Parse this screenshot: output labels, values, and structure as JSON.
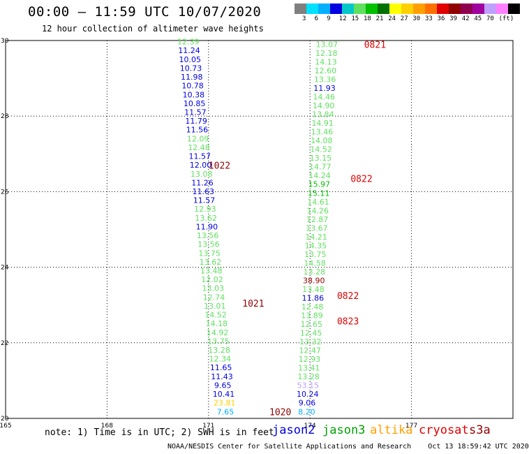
{
  "header": {
    "title": "00:00 – 11:59 UTC 10/07/2020",
    "subtitle": "12 hour collection of altimeter wave heights"
  },
  "legend": {
    "colors": [
      "#808080",
      "#00e0ff",
      "#00b0ff",
      "#0000e0",
      "#00c8c8",
      "#60e060",
      "#00c000",
      "#007000",
      "#ffff00",
      "#ffd000",
      "#ffa000",
      "#ff7000",
      "#e00000",
      "#900000",
      "#900050",
      "#a000a0",
      "#c0a0ff",
      "#ff80ff",
      "#000000"
    ],
    "labels": [
      "3",
      "6",
      "9",
      "12",
      "15",
      "18",
      "21",
      "24",
      "27",
      "30",
      "33",
      "36",
      "39",
      "42",
      "45",
      "70",
      "(ft)"
    ]
  },
  "axes": {
    "x_ticks": [
      "165",
      "168",
      "171",
      "174",
      "177"
    ],
    "y_ticks": [
      "30",
      "28",
      "26",
      "24",
      "22",
      "20"
    ]
  },
  "tracks": [
    {
      "id": "jason2-pass",
      "x0": 170.4,
      "y0": 29.97,
      "x1": 171.5,
      "y1": 20.18,
      "values": [
        "12.39",
        "11.24",
        "10.05",
        "10.73",
        "11.98",
        "10.78",
        "10.38",
        "10.85",
        "11.57",
        "11.79",
        "11.56",
        "12.09",
        "12.48",
        "11.57",
        "12.00",
        "13.08",
        "11.26",
        "11.63",
        "11.57",
        "12.93",
        "13.62",
        "11.90",
        "13.56",
        "13.56",
        "13.75",
        "13.62",
        "13.48",
        "12.02",
        "13.03",
        "12.74",
        "13.01",
        "14.52",
        "14.18",
        "14.92",
        "13.75",
        "13.28",
        "12.34",
        "11.65",
        "11.43",
        "9.65",
        "10.41",
        "23.81",
        "7.65"
      ],
      "colors": [
        "#60e060",
        "#0000e0",
        "#0000e0",
        "#0000e0",
        "#0000e0",
        "#0000e0",
        "#0000e0",
        "#0000e0",
        "#0000e0",
        "#0000e0",
        "#0000e0",
        "#60e060",
        "#60e060",
        "#0000e0",
        "#0000e0",
        "#60e060",
        "#0000e0",
        "#0000e0",
        "#0000e0",
        "#60e060",
        "#60e060",
        "#0000e0",
        "#60e060",
        "#60e060",
        "#60e060",
        "#60e060",
        "#60e060",
        "#60e060",
        "#60e060",
        "#60e060",
        "#60e060",
        "#60e060",
        "#60e060",
        "#60e060",
        "#60e060",
        "#60e060",
        "#60e060",
        "#0000e0",
        "#0000e0",
        "#0000e0",
        "#0000e0",
        "#ffd000",
        "#00b0ff"
      ]
    },
    {
      "id": "jason3-pass",
      "x0": 174.5,
      "y0": 29.9,
      "x1": 173.9,
      "y1": 20.18,
      "values": [
        "13.07",
        "12.18",
        "14.13",
        "12.60",
        "13.36",
        "11.93",
        "14.46",
        "14.90",
        "13.84",
        "14.91",
        "13.46",
        "14.08",
        "14.52",
        "13.15",
        "14.77",
        "14.24",
        "15.97",
        "15.11",
        "14.61",
        "14.26",
        "12.87",
        "13.67",
        "14.21",
        "14.35",
        "13.75",
        "14.58",
        "13.28",
        "38.90",
        "13.48",
        "11.86",
        "12.48",
        "13.89",
        "12.65",
        "12.45",
        "13.32",
        "12.47",
        "12.93",
        "13.41",
        "13.28",
        "53.15",
        "10.24",
        "9.06",
        "8.20"
      ],
      "colors": [
        "#60e060",
        "#60e060",
        "#60e060",
        "#60e060",
        "#60e060",
        "#0000e0",
        "#60e060",
        "#60e060",
        "#60e060",
        "#60e060",
        "#60e060",
        "#60e060",
        "#60e060",
        "#60e060",
        "#60e060",
        "#60e060",
        "#00c000",
        "#00c000",
        "#60e060",
        "#60e060",
        "#60e060",
        "#60e060",
        "#60e060",
        "#60e060",
        "#60e060",
        "#60e060",
        "#60e060",
        "#900000",
        "#60e060",
        "#0000e0",
        "#60e060",
        "#60e060",
        "#60e060",
        "#60e060",
        "#60e060",
        "#60e060",
        "#60e060",
        "#60e060",
        "#60e060",
        "#c0a0ff",
        "#0000e0",
        "#0000e0",
        "#00b0ff"
      ]
    }
  ],
  "time_labels": [
    {
      "text": "0821",
      "x": 175.6,
      "y": 29.9,
      "color": "#e00000"
    },
    {
      "text": "1022",
      "x": 171.0,
      "y": 26.7,
      "color": "#900000"
    },
    {
      "text": "0822",
      "x": 175.2,
      "y": 26.35,
      "color": "#e00000"
    },
    {
      "text": "0822",
      "x": 174.8,
      "y": 23.25,
      "color": "#e00000"
    },
    {
      "text": "1021",
      "x": 172.0,
      "y": 23.05,
      "color": "#900000"
    },
    {
      "text": "0823",
      "x": 174.8,
      "y": 22.58,
      "color": "#e00000"
    },
    {
      "text": "1020",
      "x": 172.8,
      "y": 20.18,
      "color": "#900000"
    }
  ],
  "footer": {
    "note": "note: 1) Time is in UTC; 2) SWH is in feet",
    "satellites": [
      {
        "name": "jason2",
        "color": "#0000e0"
      },
      {
        "name": "jason3",
        "color": "#00a000"
      },
      {
        "name": "altika",
        "color": "#ffa000"
      },
      {
        "name": "cryosat",
        "color": "#e00000"
      },
      {
        "name": "s3a",
        "color": "#900000"
      }
    ],
    "credit": "NOAA/NESDIS Center for Satellite Applications and Research",
    "timestamp": "Oct 13 18:59:42 UTC 2020"
  }
}
